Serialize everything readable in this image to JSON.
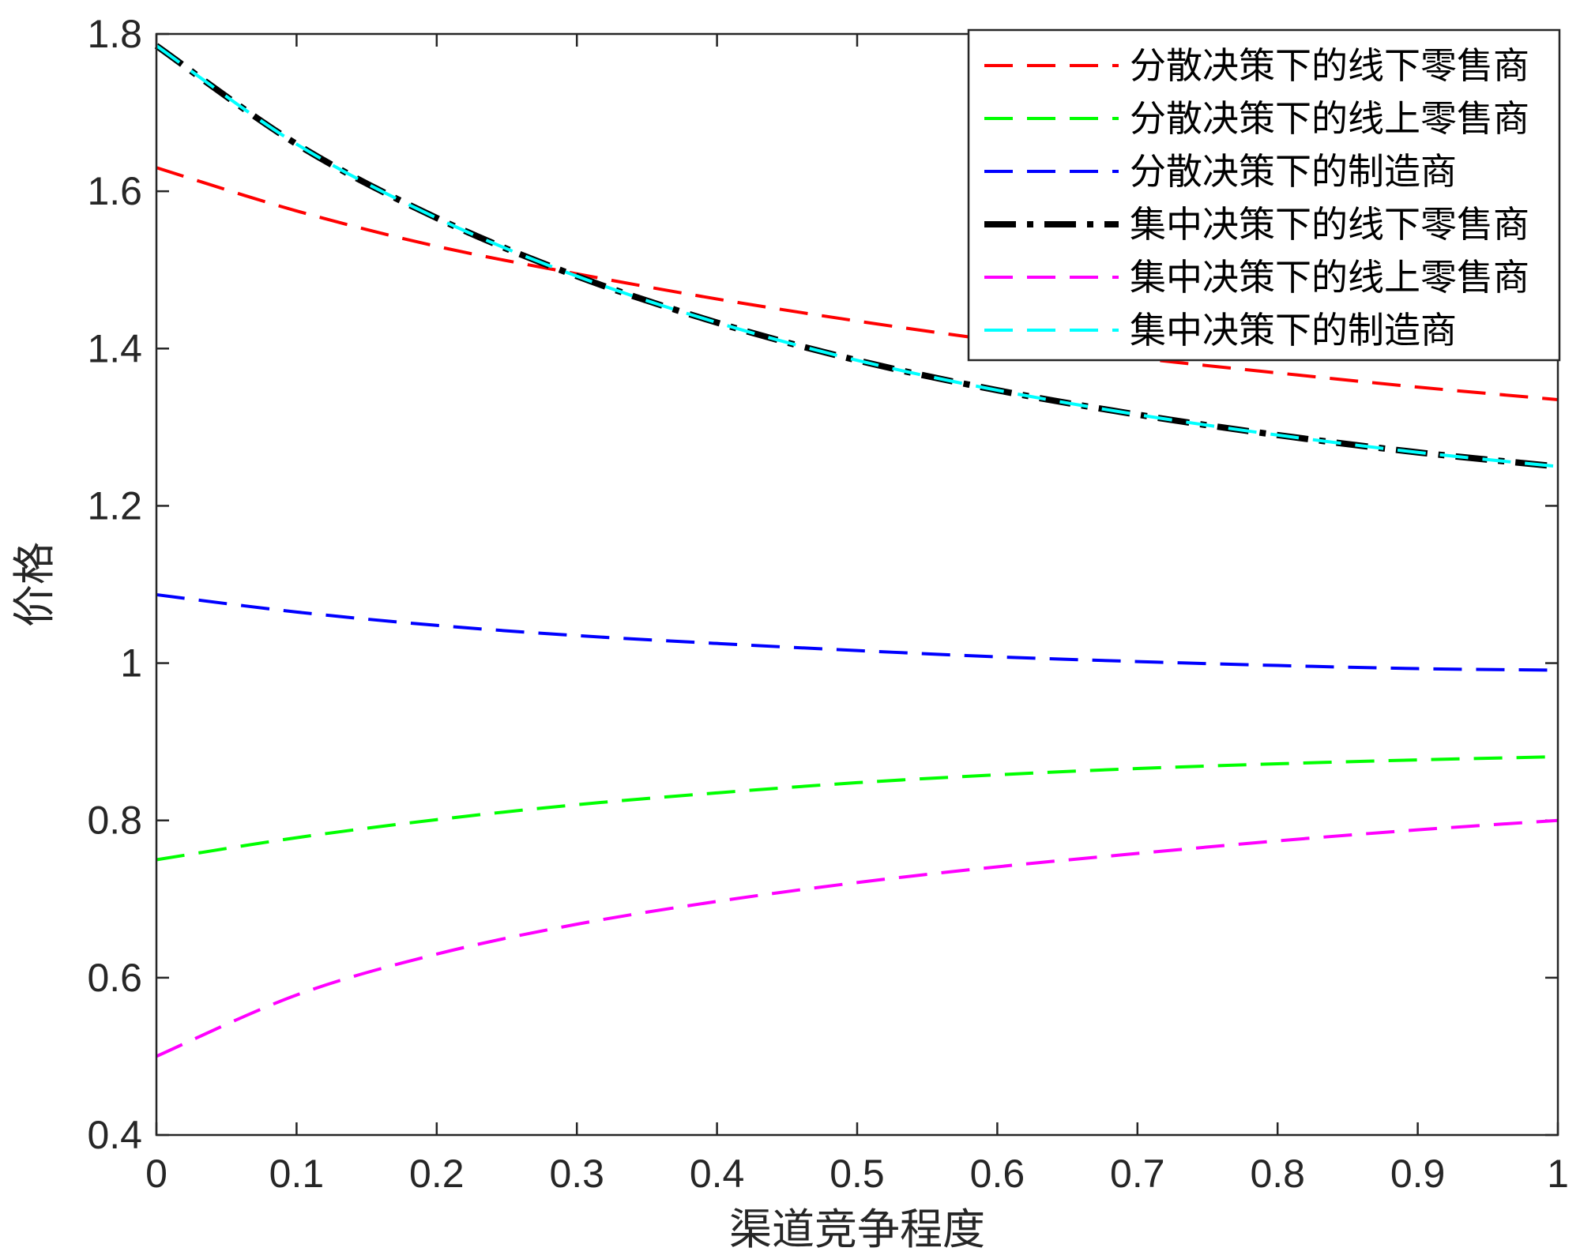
{
  "chart_data": {
    "type": "line",
    "title": "",
    "xlabel": "渠道竞争程度",
    "ylabel": "价格",
    "xlim": [
      0,
      1
    ],
    "ylim": [
      0.4,
      1.8
    ],
    "xticks": [
      0,
      0.1,
      0.2,
      0.3,
      0.4,
      0.5,
      0.6,
      0.7,
      0.8,
      0.9,
      1
    ],
    "xtick_labels": [
      "0",
      "0.1",
      "0.2",
      "0.3",
      "0.4",
      "0.5",
      "0.6",
      "0.7",
      "0.8",
      "0.9",
      "1"
    ],
    "yticks": [
      0.4,
      0.6,
      0.8,
      1.0,
      1.2,
      1.4,
      1.6,
      1.8
    ],
    "ytick_labels": [
      "0.4",
      "0.6",
      "0.8",
      "1",
      "1.2",
      "1.4",
      "1.6",
      "1.8"
    ],
    "grid": false,
    "legend_position": "top-right",
    "x": [
      0,
      0.1,
      0.2,
      0.3,
      0.4,
      0.5,
      0.6,
      0.7,
      0.8,
      0.9,
      1
    ],
    "series": [
      {
        "name": "分散决策下的线下零售商",
        "color": "#ff0000",
        "style": "dashed",
        "values": [
          1.63,
          1.575,
          1.53,
          1.495,
          1.463,
          1.435,
          1.41,
          1.388,
          1.369,
          1.351,
          1.335
        ]
      },
      {
        "name": "分散决策下的线上零售商",
        "color": "#00ff00",
        "style": "dashed",
        "values": [
          0.75,
          0.778,
          0.801,
          0.82,
          0.835,
          0.848,
          0.858,
          0.866,
          0.872,
          0.877,
          0.881
        ]
      },
      {
        "name": "分散决策下的制造商",
        "color": "#0000ff",
        "style": "dashed",
        "values": [
          1.087,
          1.065,
          1.048,
          1.035,
          1.025,
          1.016,
          1.008,
          1.002,
          0.997,
          0.993,
          0.991
        ]
      },
      {
        "name": "集中决策下的线下零售商",
        "color": "#000000",
        "style": "dashdot",
        "values": [
          1.785,
          1.66,
          1.566,
          1.492,
          1.433,
          1.385,
          1.347,
          1.316,
          1.29,
          1.268,
          1.25
        ]
      },
      {
        "name": "集中决策下的线上零售商",
        "color": "#ff00ff",
        "style": "dashed",
        "values": [
          0.5,
          0.578,
          0.63,
          0.668,
          0.697,
          0.721,
          0.741,
          0.758,
          0.774,
          0.788,
          0.8
        ]
      },
      {
        "name": "集中决策下的制造商",
        "color": "#00ffff",
        "style": "dashed",
        "values": [
          1.785,
          1.66,
          1.566,
          1.492,
          1.433,
          1.385,
          1.347,
          1.316,
          1.29,
          1.268,
          1.25
        ]
      }
    ]
  }
}
